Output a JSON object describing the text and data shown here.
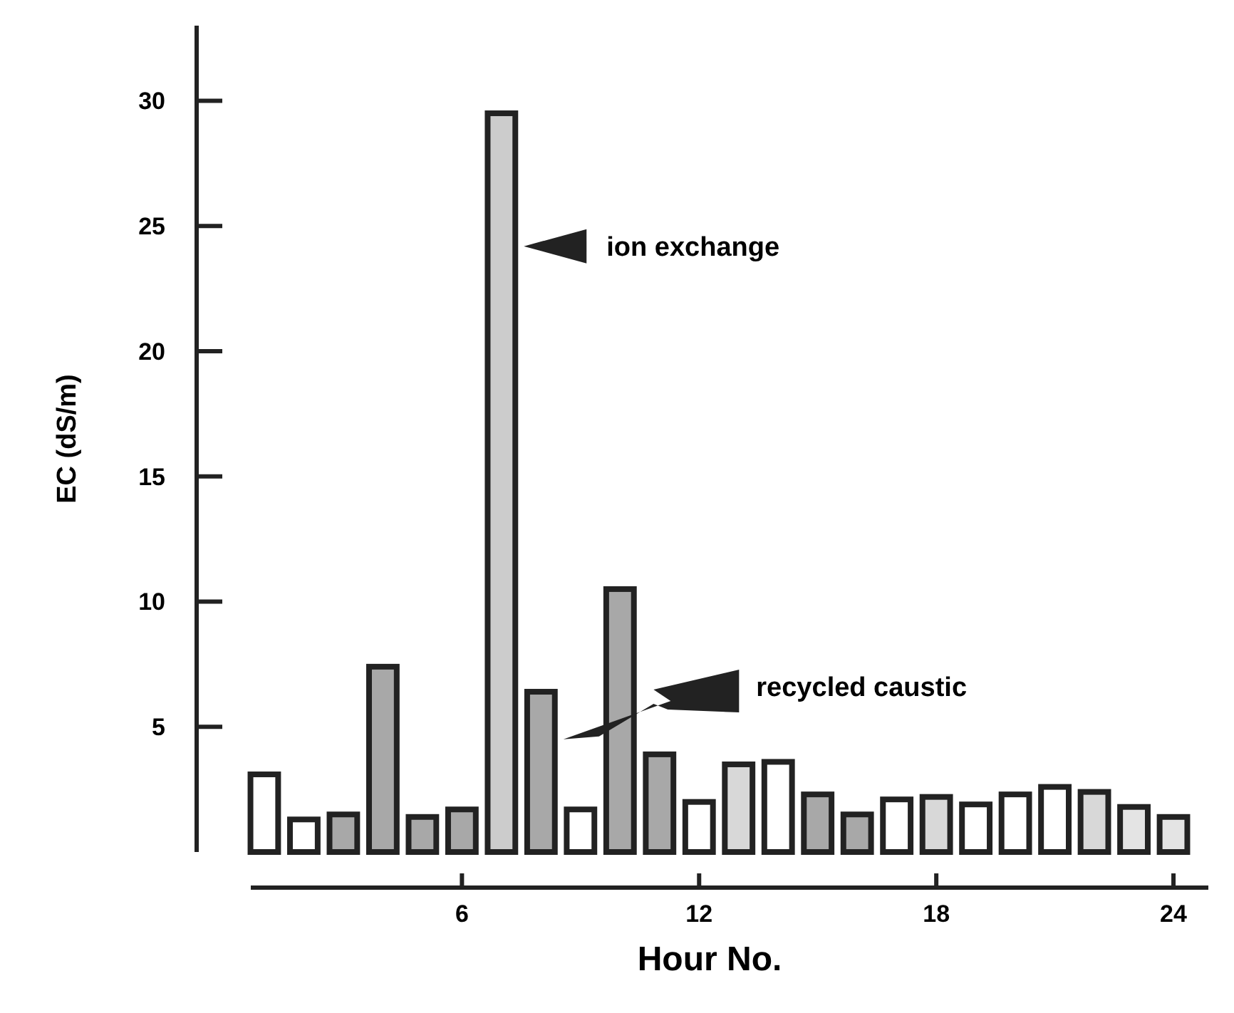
{
  "chart_data": {
    "type": "bar",
    "xlabel": "Hour No.",
    "ylabel": "EC (dS/m)",
    "categories": [
      null,
      null,
      null,
      null,
      null,
      "6",
      null,
      null,
      null,
      null,
      null,
      "12",
      null,
      null,
      null,
      null,
      null,
      "18",
      null,
      null,
      null,
      null,
      null,
      "24"
    ],
    "values": [
      3.1,
      1.3,
      1.5,
      7.4,
      1.4,
      1.7,
      29.5,
      6.4,
      1.7,
      10.5,
      3.9,
      2.0,
      3.5,
      3.6,
      2.3,
      1.5,
      2.1,
      2.2,
      1.9,
      2.3,
      2.6,
      2.4,
      1.8,
      1.4
    ],
    "colors": [
      "#ffffff",
      "#ffffff",
      "#a8a8a8",
      "#a8a8a8",
      "#a8a8a8",
      "#a8a8a8",
      "#cccccc",
      "#a8a8a8",
      "#ffffff",
      "#a8a8a8",
      "#a8a8a8",
      "#ffffff",
      "#d8d8d8",
      "#ffffff",
      "#a8a8a8",
      "#a8a8a8",
      "#ffffff",
      "#d8d8d8",
      "#ffffff",
      "#ffffff",
      "#ffffff",
      "#d8d8d8",
      "#e4e4e4",
      "#e4e4e4"
    ],
    "ylim": [
      0,
      33
    ],
    "yticks": [
      5,
      10,
      15,
      20,
      25,
      30
    ],
    "annotations": [
      "ion exchange",
      "recycled caustic"
    ]
  }
}
